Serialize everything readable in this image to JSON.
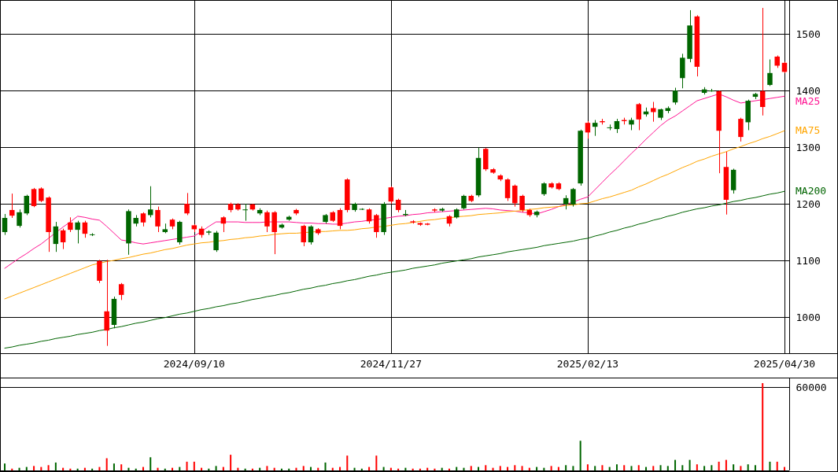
{
  "chart_data": [
    {
      "type": "candlestick",
      "ylim": [
        936,
        1560
      ],
      "yticks": [
        1000,
        1100,
        1200,
        1300,
        1400,
        1500
      ],
      "grid": true,
      "categories": [
        null,
        null,
        null,
        null,
        null,
        null,
        null,
        null,
        null,
        null,
        null,
        null,
        null,
        null,
        null,
        null,
        null,
        null,
        null,
        null,
        null,
        null,
        null,
        null,
        null,
        null,
        "2024/09/10",
        null,
        null,
        null,
        null,
        null,
        null,
        null,
        null,
        null,
        null,
        null,
        null,
        null,
        null,
        null,
        null,
        null,
        null,
        null,
        null,
        null,
        null,
        null,
        null,
        null,
        null,
        "2024/11/27",
        null,
        null,
        null,
        null,
        null,
        null,
        null,
        null,
        null,
        null,
        null,
        null,
        null,
        null,
        null,
        null,
        null,
        null,
        null,
        null,
        null,
        null,
        null,
        null,
        null,
        null,
        "2025/02/13",
        null,
        null,
        null,
        null,
        null,
        null,
        null,
        null,
        null,
        null,
        null,
        null,
        null,
        null,
        null,
        null,
        null,
        null,
        null,
        null,
        null,
        null,
        null,
        null,
        null,
        null,
        "2025/04/30"
      ],
      "ohlc": [
        [
          1150,
          1182,
          1145,
          1175
        ],
        [
          1189,
          1218,
          1175,
          1179
        ],
        [
          1161,
          1190,
          1158,
          1185
        ],
        [
          1183,
          1216,
          1180,
          1214
        ],
        [
          1226,
          1228,
          1194,
          1196
        ],
        [
          1227,
          1229,
          1203,
          1205
        ],
        [
          1211,
          1213,
          1115,
          1150
        ],
        [
          1129,
          1168,
          1115,
          1160
        ],
        [
          1153,
          1156,
          1120,
          1132
        ],
        [
          1167,
          1176,
          1150,
          1154
        ],
        [
          1154,
          1170,
          1130,
          1167
        ],
        [
          1167,
          1170,
          1140,
          1147
        ],
        [
          1145,
          1148,
          1143,
          1146
        ],
        [
          1099,
          1101,
          1060,
          1064
        ],
        [
          1010,
          1101,
          949,
          976
        ],
        [
          986,
          1036,
          980,
          1032
        ],
        [
          1058,
          1060,
          1030,
          1039
        ],
        [
          1130,
          1190,
          1110,
          1187
        ],
        [
          1165,
          1180,
          1160,
          1175
        ],
        [
          1183,
          1185,
          1160,
          1167
        ],
        [
          1180,
          1231,
          1176,
          1190
        ],
        [
          1189,
          1195,
          1150,
          1160
        ],
        [
          1150,
          1165,
          1148,
          1155
        ],
        [
          1172,
          1174,
          1155,
          1160
        ],
        [
          1132,
          1170,
          1128,
          1168
        ],
        [
          1200,
          1219,
          1180,
          1183
        ],
        [
          1162,
          1164,
          1150,
          1155
        ],
        [
          1156,
          1160,
          1140,
          1145
        ],
        [
          1149,
          1153,
          1145,
          1151
        ],
        [
          1118,
          1152,
          1115,
          1149
        ],
        [
          1176,
          1178,
          1150,
          1165
        ],
        [
          1200,
          1202,
          1185,
          1189
        ],
        [
          1199,
          1201,
          1188,
          1190
        ],
        [
          1190,
          1200,
          1170,
          1190
        ],
        [
          1199,
          1200,
          1188,
          1190
        ],
        [
          1183,
          1192,
          1180,
          1189
        ],
        [
          1185,
          1188,
          1150,
          1160
        ],
        [
          1185,
          1187,
          1111,
          1150
        ],
        [
          1158,
          1165,
          1156,
          1163
        ],
        [
          1172,
          1179,
          1170,
          1177
        ],
        [
          1189,
          1191,
          1180,
          1183
        ],
        [
          1161,
          1163,
          1125,
          1132
        ],
        [
          1132,
          1162,
          1128,
          1160
        ],
        [
          1155,
          1157,
          1145,
          1148
        ],
        [
          1168,
          1182,
          1165,
          1180
        ],
        [
          1185,
          1187,
          1168,
          1170
        ],
        [
          1189,
          1192,
          1155,
          1161
        ],
        [
          1243,
          1245,
          1185,
          1189
        ],
        [
          1189,
          1202,
          1186,
          1200
        ],
        [
          1190,
          1192,
          1189,
          1191
        ],
        [
          1190,
          1192,
          1165,
          1169
        ],
        [
          1180,
          1182,
          1140,
          1150
        ],
        [
          1150,
          1203,
          1145,
          1200
        ],
        [
          1229,
          1231,
          1200,
          1204
        ],
        [
          1207,
          1209,
          1185,
          1189
        ],
        [
          1180,
          1189,
          1178,
          1182
        ],
        [
          1169,
          1171,
          1165,
          1167
        ],
        [
          1166,
          1167,
          1161,
          1163
        ],
        [
          1165,
          1166,
          1162,
          1163
        ],
        [
          1190,
          1192,
          1185,
          1188
        ],
        [
          1188,
          1193,
          1186,
          1191
        ],
        [
          1178,
          1180,
          1160,
          1165
        ],
        [
          1176,
          1192,
          1174,
          1190
        ],
        [
          1192,
          1216,
          1190,
          1214
        ],
        [
          1214,
          1216,
          1203,
          1205
        ],
        [
          1215,
          1299,
          1212,
          1281
        ],
        [
          1297,
          1299,
          1258,
          1261
        ],
        [
          1261,
          1263,
          1253,
          1255
        ],
        [
          1250,
          1252,
          1240,
          1243
        ],
        [
          1243,
          1245,
          1205,
          1210
        ],
        [
          1232,
          1234,
          1195,
          1201
        ],
        [
          1214,
          1216,
          1185,
          1189
        ],
        [
          1189,
          1191,
          1177,
          1180
        ],
        [
          1180,
          1188,
          1176,
          1186
        ],
        [
          1217,
          1238,
          1214,
          1236
        ],
        [
          1236,
          1238,
          1227,
          1229
        ],
        [
          1236,
          1238,
          1224,
          1226
        ],
        [
          1199,
          1215,
          1190,
          1210
        ],
        [
          1199,
          1228,
          1195,
          1226
        ],
        [
          1236,
          1331,
          1232,
          1329
        ],
        [
          1343,
          1346,
          1315,
          1326
        ],
        [
          1336,
          1348,
          1320,
          1343
        ],
        [
          1346,
          1350,
          1340,
          1344
        ],
        [
          1335,
          1340,
          1330,
          1335
        ],
        [
          1332,
          1350,
          1325,
          1346
        ],
        [
          1348,
          1352,
          1340,
          1346
        ],
        [
          1340,
          1352,
          1330,
          1348
        ],
        [
          1376,
          1378,
          1330,
          1349
        ],
        [
          1358,
          1370,
          1354,
          1363
        ],
        [
          1369,
          1380,
          1345,
          1362
        ],
        [
          1352,
          1368,
          1348,
          1367
        ],
        [
          1364,
          1372,
          1360,
          1369
        ],
        [
          1379,
          1405,
          1375,
          1400
        ],
        [
          1422,
          1465,
          1404,
          1458
        ],
        [
          1456,
          1542,
          1450,
          1515
        ],
        [
          1531,
          1533,
          1425,
          1442
        ],
        [
          1396,
          1406,
          1393,
          1402
        ],
        [
          1400,
          1403,
          1398,
          1400
        ],
        [
          1399,
          1400,
          1254,
          1329
        ],
        [
          1265,
          1292,
          1181,
          1207
        ],
        [
          1224,
          1262,
          1218,
          1260
        ],
        [
          1350,
          1352,
          1310,
          1318
        ],
        [
          1344,
          1384,
          1330,
          1382
        ],
        [
          1389,
          1396,
          1385,
          1394
        ],
        [
          1399,
          1546,
          1356,
          1371
        ],
        [
          1410,
          1455,
          1408,
          1431
        ],
        [
          1460,
          1462,
          1440,
          1444
        ],
        [
          1449,
          1451,
          1431,
          1433
        ]
      ],
      "colors": [
        "#006600",
        "#ff0000",
        "#006600",
        "#006600",
        "#ff0000",
        "#ff0000",
        "#ff0000",
        "#006600",
        "#ff0000",
        "#ff0000",
        "#006600",
        "#ff0000",
        "#006600",
        "#ff0000",
        "#ff0000",
        "#006600",
        "#ff0000",
        "#006600",
        "#006600",
        "#ff0000",
        "#006600",
        "#ff0000",
        "#006600",
        "#ff0000",
        "#006600",
        "#ff0000",
        "#ff0000",
        "#ff0000",
        "#006600",
        "#006600",
        "#ff0000",
        "#ff0000",
        "#ff0000",
        "#006600",
        "#ff0000",
        "#006600",
        "#ff0000",
        "#ff0000",
        "#006600",
        "#006600",
        "#ff0000",
        "#ff0000",
        "#006600",
        "#ff0000",
        "#006600",
        "#ff0000",
        "#ff0000",
        "#ff0000",
        "#006600",
        "#006600",
        "#ff0000",
        "#ff0000",
        "#006600",
        "#ff0000",
        "#ff0000",
        "#006600",
        "#ff0000",
        "#ff0000",
        "#ff0000",
        "#ff0000",
        "#006600",
        "#ff0000",
        "#006600",
        "#006600",
        "#ff0000",
        "#006600",
        "#ff0000",
        "#ff0000",
        "#ff0000",
        "#ff0000",
        "#ff0000",
        "#ff0000",
        "#ff0000",
        "#006600",
        "#006600",
        "#ff0000",
        "#ff0000",
        "#006600",
        "#006600",
        "#006600",
        "#ff0000",
        "#006600",
        "#ff0000",
        "#006600",
        "#006600",
        "#ff0000",
        "#006600",
        "#ff0000",
        "#006600",
        "#ff0000",
        "#006600",
        "#006600",
        "#006600",
        "#006600",
        "#006600",
        "#ff0000",
        "#006600",
        "#006600",
        "#ff0000",
        "#ff0000",
        "#006600",
        "#ff0000",
        "#006600",
        "#006600",
        "#ff0000",
        "#006600",
        "#ff0000",
        "#ff0000"
      ],
      "series": [
        {
          "type": "line",
          "name": "MA25",
          "color": "#ff1493",
          "values": [
            1086,
            1095,
            1104,
            1112,
            1121,
            1129,
            1139,
            1149,
            1159,
            1168,
            1178,
            1176,
            1173,
            1171,
            1160,
            1148,
            1136,
            1134,
            1131,
            1129,
            1131,
            1133,
            1135,
            1137,
            1139,
            1141,
            1143,
            1151,
            1160,
            1168,
            1168,
            1168,
            1168,
            1167,
            1167,
            1167,
            1168,
            1168,
            1168,
            1168,
            1167,
            1166,
            1166,
            1165,
            1165,
            1164,
            1164,
            1166,
            1168,
            1169,
            1171,
            1172,
            1174,
            1176,
            1178,
            1179,
            1181,
            1182,
            1184,
            1185,
            1186,
            1187,
            1188,
            1189,
            1190,
            1191,
            1192,
            1191,
            1189,
            1188,
            1187,
            1185,
            1184,
            1182,
            1186,
            1190,
            1195,
            1199,
            1203,
            1208,
            1212,
            1225,
            1238,
            1251,
            1263,
            1276,
            1289,
            1301,
            1314,
            1326,
            1338,
            1348,
            1355,
            1364,
            1373,
            1382,
            1386,
            1390,
            1394,
            1389,
            1383,
            1378,
            1380,
            1382,
            1384,
            1386,
            1388,
            1390
          ]
        },
        {
          "type": "line",
          "name": "MA75",
          "color": "#ffa500",
          "values": [
            1032,
            1037,
            1042,
            1047,
            1052,
            1057,
            1062,
            1067,
            1072,
            1077,
            1082,
            1087,
            1092,
            1095,
            1098,
            1100,
            1103,
            1105,
            1108,
            1111,
            1113,
            1116,
            1119,
            1121,
            1124,
            1127,
            1129,
            1131,
            1132,
            1134,
            1135,
            1137,
            1138,
            1140,
            1141,
            1143,
            1144,
            1146,
            1147,
            1148,
            1148,
            1149,
            1150,
            1151,
            1151,
            1152,
            1153,
            1153,
            1154,
            1156,
            1157,
            1159,
            1160,
            1162,
            1164,
            1165,
            1167,
            1169,
            1171,
            1172,
            1174,
            1175,
            1177,
            1178,
            1179,
            1181,
            1182,
            1183,
            1184,
            1186,
            1187,
            1188,
            1190,
            1191,
            1193,
            1194,
            1195,
            1197,
            1198,
            1200,
            1201,
            1205,
            1209,
            1212,
            1216,
            1220,
            1224,
            1230,
            1235,
            1241,
            1247,
            1252,
            1258,
            1264,
            1269,
            1275,
            1279,
            1284,
            1288,
            1292,
            1297,
            1301,
            1306,
            1310,
            1315,
            1319,
            1324,
            1329
          ]
        },
        {
          "type": "line",
          "name": "MA200",
          "color": "#006400",
          "values": [
            945,
            947,
            950,
            952,
            954,
            957,
            959,
            962,
            964,
            966,
            969,
            971,
            973,
            976,
            978,
            981,
            983,
            986,
            989,
            991,
            994,
            997,
            999,
            1002,
            1005,
            1007,
            1010,
            1013,
            1015,
            1018,
            1020,
            1023,
            1025,
            1028,
            1031,
            1033,
            1036,
            1038,
            1041,
            1043,
            1046,
            1049,
            1051,
            1054,
            1056,
            1059,
            1061,
            1064,
            1066,
            1069,
            1072,
            1074,
            1077,
            1079,
            1081,
            1083,
            1086,
            1088,
            1090,
            1092,
            1095,
            1097,
            1099,
            1101,
            1103,
            1106,
            1108,
            1110,
            1112,
            1115,
            1117,
            1119,
            1121,
            1123,
            1126,
            1128,
            1130,
            1132,
            1134,
            1137,
            1139,
            1143,
            1146,
            1150,
            1153,
            1157,
            1160,
            1164,
            1167,
            1171,
            1174,
            1178,
            1181,
            1185,
            1188,
            1191,
            1193,
            1196,
            1198,
            1201,
            1204,
            1206,
            1209,
            1211,
            1214,
            1217,
            1219,
            1222
          ]
        }
      ]
    },
    {
      "type": "bar",
      "ylim": [
        0,
        67000
      ],
      "yticks": [
        {
          "value": 0,
          "label": null
        },
        60000
      ],
      "grid": "y",
      "categories": [
        null,
        null,
        null,
        null,
        null,
        null,
        null,
        null,
        null,
        null,
        null,
        null,
        null,
        null,
        null,
        null,
        null,
        null,
        null,
        null,
        null,
        null,
        null,
        null,
        null,
        null,
        null,
        null,
        null,
        null,
        null,
        null,
        null,
        null,
        null,
        null,
        null,
        null,
        null,
        null,
        null,
        null,
        null,
        null,
        null,
        null,
        null,
        null,
        null,
        null,
        null,
        null,
        null,
        null,
        null,
        null,
        null,
        null,
        null,
        null,
        null,
        null,
        null,
        null,
        null,
        null,
        null,
        null,
        null,
        null,
        null,
        null,
        null,
        null,
        null,
        null,
        null,
        null,
        null,
        null,
        null,
        null,
        null,
        null,
        null,
        null,
        null,
        null,
        null,
        null,
        null,
        null,
        null,
        null,
        null,
        null,
        null,
        null,
        null,
        null,
        null,
        null,
        null,
        null,
        null,
        null,
        null,
        null
      ],
      "values": [
        5000,
        1300,
        1900,
        2500,
        3200,
        2500,
        3800,
        5700,
        1900,
        1300,
        1300,
        1900,
        1300,
        2500,
        8800,
        5000,
        4400,
        1900,
        1300,
        2500,
        9500,
        1900,
        1300,
        1900,
        2500,
        6300,
        6300,
        1900,
        1300,
        3200,
        2500,
        11300,
        1900,
        1300,
        1300,
        1900,
        3200,
        1900,
        1300,
        1300,
        1900,
        3200,
        2500,
        1900,
        5700,
        1900,
        2500,
        10700,
        1900,
        1300,
        2500,
        10700,
        2500,
        1900,
        1300,
        1900,
        1300,
        1300,
        1900,
        1300,
        1900,
        1300,
        2500,
        1900,
        3200,
        2500,
        3800,
        1900,
        3200,
        2500,
        3800,
        3200,
        1900,
        2500,
        1900,
        3200,
        2500,
        3800,
        3200,
        21400,
        4400,
        3200,
        3800,
        2500,
        4400,
        3800,
        3200,
        3800,
        2500,
        3200,
        3800,
        3200,
        7600,
        3800,
        7600,
        4400,
        3200,
        3800,
        6300,
        7600,
        4400,
        3200,
        4400,
        3800,
        63000,
        6300,
        6300,
        2500
      ],
      "colors": [
        "#006600",
        "#ff0000",
        "#006600",
        "#006600",
        "#ff0000",
        "#ff0000",
        "#ff0000",
        "#006600",
        "#ff0000",
        "#ff0000",
        "#006600",
        "#ff0000",
        "#006600",
        "#ff0000",
        "#ff0000",
        "#006600",
        "#ff0000",
        "#006600",
        "#006600",
        "#ff0000",
        "#006600",
        "#ff0000",
        "#006600",
        "#ff0000",
        "#006600",
        "#ff0000",
        "#ff0000",
        "#ff0000",
        "#006600",
        "#006600",
        "#ff0000",
        "#ff0000",
        "#ff0000",
        "#006600",
        "#ff0000",
        "#006600",
        "#ff0000",
        "#ff0000",
        "#006600",
        "#006600",
        "#ff0000",
        "#ff0000",
        "#006600",
        "#ff0000",
        "#006600",
        "#ff0000",
        "#ff0000",
        "#ff0000",
        "#006600",
        "#006600",
        "#ff0000",
        "#ff0000",
        "#006600",
        "#ff0000",
        "#ff0000",
        "#006600",
        "#ff0000",
        "#ff0000",
        "#ff0000",
        "#ff0000",
        "#006600",
        "#ff0000",
        "#006600",
        "#006600",
        "#ff0000",
        "#006600",
        "#ff0000",
        "#ff0000",
        "#ff0000",
        "#ff0000",
        "#ff0000",
        "#ff0000",
        "#ff0000",
        "#006600",
        "#006600",
        "#ff0000",
        "#ff0000",
        "#006600",
        "#006600",
        "#006600",
        "#ff0000",
        "#006600",
        "#ff0000",
        "#006600",
        "#006600",
        "#ff0000",
        "#006600",
        "#ff0000",
        "#006600",
        "#ff0000",
        "#006600",
        "#006600",
        "#006600",
        "#006600",
        "#006600",
        "#ff0000",
        "#006600",
        "#006600",
        "#ff0000",
        "#ff0000",
        "#006600",
        "#ff0000",
        "#006600",
        "#006600",
        "#ff0000",
        "#006600",
        "#ff0000",
        "#ff0000"
      ],
      "tick_labels": "y"
    }
  ]
}
